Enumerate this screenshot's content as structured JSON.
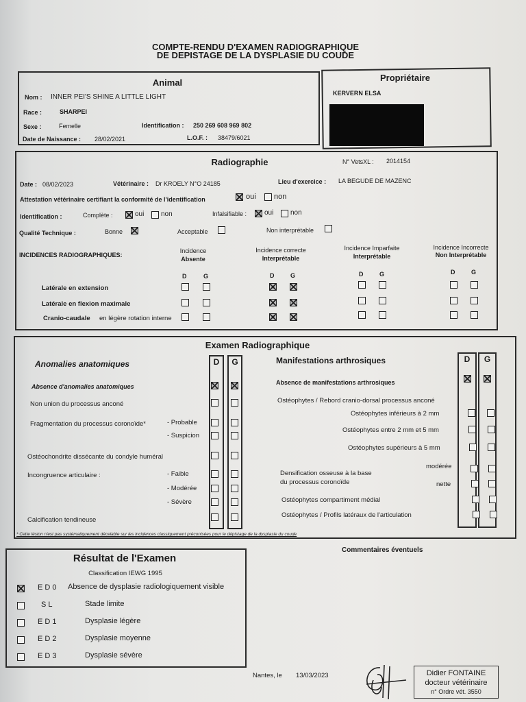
{
  "title": {
    "line1": "COMPTE-RENDU D'EXAMEN RADIOGRAPHIQUE",
    "line2": "DE DEPISTAGE DE LA DYSPLASIE DU COUDE"
  },
  "animal": {
    "heading": "Animal",
    "nom_label": "Nom :",
    "nom": "INNER PEI'S SHINE A LITTLE LIGHT",
    "race_label": "Race :",
    "race": "SHARPEI",
    "sexe_label": "Sexe :",
    "sexe": "Femelle",
    "id_label": "Identification :",
    "id": "250 269 608 969 802",
    "dob_label": "Date de Naissance :",
    "dob": "28/02/2021",
    "lof_label": "L.O.F. :",
    "lof": "38479/6021"
  },
  "owner": {
    "heading": "Propriétaire",
    "name": "KERVERN ELSA"
  },
  "radio": {
    "heading": "Radiographie",
    "vetsxl_label": "N° VetsXL :",
    "vetsxl": "2014154",
    "date_label": "Date :",
    "date": "08/02/2023",
    "vet_label": "Vétérinaire :",
    "vet": "Dr KROELY N°O 24185",
    "lieu_label": "Lieu d'exercice :",
    "lieu": "LA BEGUDE DE MAZENC",
    "attest": "Attestation vétérinaire certifiant la conformité de l'identification",
    "oui": "oui",
    "non": "non",
    "attest_oui": true,
    "attest_non": false,
    "ident_label": "Identification :",
    "complete_label": "Complète :",
    "complete_oui": true,
    "complete_non": false,
    "infals_label": "Infalsifiable :",
    "infals_oui": true,
    "infals_non": false,
    "qual_label": "Qualité Technique :",
    "bonne": "Bonne",
    "bonne_c": true,
    "acceptable": "Acceptable",
    "acceptable_c": false,
    "noninterp": "Non interprétable",
    "noninterp_c": false,
    "incid_label": "INCIDENCES RADIOGRAPHIQUES:",
    "cols": [
      {
        "l1": "Incidence",
        "l2": "Absente"
      },
      {
        "l1": "Incidence correcte",
        "l2": "Interprétable"
      },
      {
        "l1": "Incidence Imparfaite",
        "l2": "Interprétable"
      },
      {
        "l1": "Incidence Incorrecte",
        "l2": "Non Interprétable"
      }
    ],
    "d": "D",
    "g": "G",
    "rows": [
      {
        "label": "Latérale en extension",
        "suffix": "",
        "checks": [
          false,
          false,
          true,
          true,
          false,
          false,
          false,
          false
        ]
      },
      {
        "label": "Latérale en flexion maximale",
        "suffix": "",
        "checks": [
          false,
          false,
          true,
          true,
          false,
          false,
          false,
          false
        ]
      },
      {
        "label": "Cranio-caudale",
        "suffix": " en légère rotation interne",
        "checks": [
          false,
          false,
          true,
          true,
          false,
          false,
          false,
          false
        ]
      }
    ]
  },
  "exam": {
    "heading": "Examen Radiographique",
    "d": "D",
    "g": "G",
    "left_heading": "Anomalies anatomiques",
    "left": [
      {
        "label": "Absence d'anomalies anatomiques",
        "sub": "",
        "d": true,
        "g": true
      },
      {
        "label": "Non union du processus anconé",
        "sub": "",
        "d": false,
        "g": false
      },
      {
        "label": "Fragmentation du processus coronoïde*",
        "sub": "- Probable",
        "d": false,
        "g": false
      },
      {
        "label": "",
        "sub": "- Suspicion",
        "d": false,
        "g": false
      },
      {
        "label": "Ostéochondrite dissécante du condyle huméral",
        "sub": "",
        "d": false,
        "g": false
      },
      {
        "label": "Incongruence articulaire :",
        "sub": "- Faible",
        "d": false,
        "g": false
      },
      {
        "label": "",
        "sub": "- Modérée",
        "d": false,
        "g": false
      },
      {
        "label": "",
        "sub": "- Sévère",
        "d": false,
        "g": false
      },
      {
        "label": "Calcification tendineuse",
        "sub": "",
        "d": false,
        "g": false
      }
    ],
    "right_heading": "Manifestations arthrosiques",
    "right_absence": {
      "label": "Absence de manifestations arthrosiques",
      "d": true,
      "g": true
    },
    "right_osteo_title": "Ostéophytes / Rebord cranio-dorsal processus anconé",
    "right": [
      {
        "label": "Ostéophytes inférieurs à 2 mm",
        "d": false,
        "g": false
      },
      {
        "label": "Ostéophytes entre 2 mm et 5 mm",
        "d": false,
        "g": false
      },
      {
        "label": "Ostéophytes supérieurs à 5 mm",
        "d": false,
        "g": false
      },
      {
        "label": "modérée",
        "d": false,
        "g": false
      },
      {
        "label": "nette",
        "d": false,
        "g": false
      },
      {
        "label": "Ostéophytes compartiment médial",
        "d": false,
        "g": false
      },
      {
        "label": "Ostéophytes / Profils latéraux de l'articulation",
        "d": false,
        "g": false
      }
    ],
    "densif1": "Densification osseuse à la base",
    "densif2": "du processus coronoïde",
    "footnote": "* Cette lésion n'est pas systématiquement décelable sur les incidences classiquement préconisées pour le dépistage de la dysplasie du coude"
  },
  "result": {
    "heading": "Résultat de l'Examen",
    "classif": "Classification IEWG 1995",
    "items": [
      {
        "code": "E D 0",
        "label": "Absence de dysplasie radiologiquement visible",
        "checked": true
      },
      {
        "code": "S L",
        "label": "Stade limite",
        "checked": false
      },
      {
        "code": "E D 1",
        "label": "Dysplasie légère",
        "checked": false
      },
      {
        "code": "E D 2",
        "label": "Dysplasie moyenne",
        "checked": false
      },
      {
        "code": "E D 3",
        "label": "Dysplasie sévère",
        "checked": false
      }
    ]
  },
  "comments": {
    "heading": "Commentaires éventuels"
  },
  "signature": {
    "place": "Nantes, le",
    "date": "13/03/2023",
    "stamp1": "Didier FONTAINE",
    "stamp2": "docteur vétérinaire",
    "stamp3": "n° Ordre vét. 3550"
  }
}
